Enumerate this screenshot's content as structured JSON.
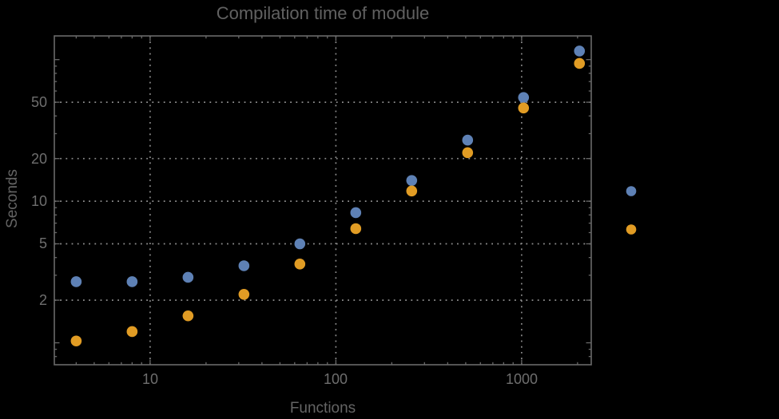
{
  "title": "Compilation time of module",
  "colors": {
    "background": "#000000",
    "frame": "#696969",
    "grid": "#8e8e8e",
    "text": "#6e6e6e",
    "series1": "#5E81B5",
    "series2": "#E19C24"
  },
  "chart_data": {
    "type": "scatter",
    "title": "Compilation time of module",
    "xlabel": "Functions",
    "ylabel": "Seconds",
    "x_scale": "log",
    "y_scale": "log",
    "x_range": [
      3.05,
      2370
    ],
    "y_range": [
      0.7,
      147
    ],
    "x_major_ticks": [
      10,
      100,
      1000
    ],
    "x_major_tick_labels": [
      "10",
      "100",
      "1000"
    ],
    "x_minor_ticks": [
      4,
      5,
      6,
      7,
      8,
      9,
      20,
      30,
      40,
      50,
      60,
      70,
      80,
      90,
      200,
      300,
      400,
      500,
      600,
      700,
      800,
      900,
      2000
    ],
    "x_unlabeled_major_ticks": [],
    "y_major_ticks": [
      2,
      5,
      10,
      20,
      50
    ],
    "y_major_tick_labels": [
      "2",
      "5",
      "10",
      "20",
      "50"
    ],
    "y_minor_ticks": [
      0.8,
      0.9,
      3,
      4,
      6,
      7,
      8,
      9,
      30,
      40,
      60,
      70,
      80,
      90
    ],
    "y_unlabeled_major_ticks": [
      1,
      100
    ],
    "grid": {
      "x_values": [
        10,
        100,
        1000
      ],
      "y_values": [
        2,
        5,
        10,
        20,
        50
      ],
      "style": "dotted"
    },
    "legend": {
      "position": "right-outside",
      "labels_visible": false,
      "markers": [
        {
          "series": "series-1",
          "color": "#5E81B5"
        },
        {
          "series": "series-2",
          "color": "#E19C24"
        }
      ]
    },
    "series": [
      {
        "name": "series-1",
        "color": "#5E81B5",
        "x": [
          4,
          8,
          16,
          32,
          64,
          128,
          256,
          512,
          1024,
          2048
        ],
        "y": [
          2.7,
          2.7,
          2.9,
          3.5,
          5.0,
          8.3,
          14,
          27,
          54,
          115
        ]
      },
      {
        "name": "series-2",
        "color": "#E19C24",
        "x": [
          4,
          8,
          16,
          32,
          64,
          128,
          256,
          512,
          1024,
          2048
        ],
        "y": [
          1.03,
          1.2,
          1.55,
          2.2,
          3.6,
          6.4,
          11.8,
          22,
          45.5,
          94
        ]
      }
    ]
  }
}
